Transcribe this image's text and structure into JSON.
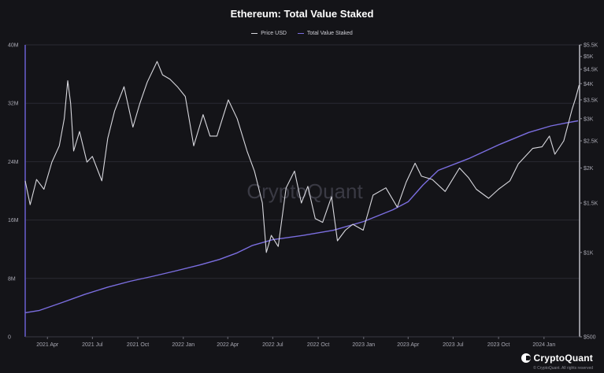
{
  "chart_data": {
    "type": "line",
    "title": "Ethereum: Total Value Staked",
    "legend": [
      "Price USD",
      "Total Value Staked"
    ],
    "legend_placement": "top-center",
    "grid": true,
    "x_ticks": [
      "2021 Apr",
      "2021 Jul",
      "2021 Oct",
      "2022 Jan",
      "2022 Apr",
      "2022 Jul",
      "2022 Oct",
      "2023 Jan",
      "2023 Apr",
      "2023 Jul",
      "2023 Oct",
      "2024 Jan"
    ],
    "x_range": [
      "2021-02-15",
      "2024-03-13"
    ],
    "left_axis": {
      "label": "",
      "ticks": [
        "0",
        "8M",
        "16M",
        "24M",
        "32M",
        "40M"
      ],
      "range": [
        0,
        40000000
      ]
    },
    "right_axis": {
      "label": "",
      "scale": "log",
      "ticks": [
        "$500",
        "$1K",
        "$1.5K",
        "$2K",
        "$2.5K",
        "$3K",
        "$3.5K",
        "$4K",
        "$4.5K",
        "$5K",
        "$5.5K"
      ],
      "range": [
        500,
        5500
      ]
    },
    "series": [
      {
        "name": "Total Value Staked",
        "color": "#7b6ee0",
        "axis": "left",
        "points": [
          [
            "2021-02-15",
            3300000
          ],
          [
            "2021-03-15",
            3600000
          ],
          [
            "2021-05-01",
            4700000
          ],
          [
            "2021-06-15",
            5800000
          ],
          [
            "2021-08-01",
            6800000
          ],
          [
            "2021-09-15",
            7600000
          ],
          [
            "2021-11-01",
            8300000
          ],
          [
            "2021-12-15",
            9000000
          ],
          [
            "2022-02-01",
            9800000
          ],
          [
            "2022-03-15",
            10600000
          ],
          [
            "2022-04-20",
            11500000
          ],
          [
            "2022-05-20",
            12500000
          ],
          [
            "2022-07-01",
            13300000
          ],
          [
            "2022-09-01",
            13900000
          ],
          [
            "2022-11-01",
            14600000
          ],
          [
            "2023-01-01",
            15800000
          ],
          [
            "2023-03-01",
            17400000
          ],
          [
            "2023-04-01",
            18500000
          ],
          [
            "2023-05-01",
            20800000
          ],
          [
            "2023-06-01",
            22800000
          ],
          [
            "2023-08-01",
            24400000
          ],
          [
            "2023-10-01",
            26300000
          ],
          [
            "2023-12-01",
            28000000
          ],
          [
            "2024-01-15",
            28900000
          ],
          [
            "2024-02-15",
            29300000
          ],
          [
            "2024-03-10",
            29600000
          ]
        ]
      },
      {
        "name": "Price USD",
        "color": "#d8d8de",
        "axis": "right",
        "points": [
          [
            "2021-02-15",
            1800
          ],
          [
            "2021-02-25",
            1480
          ],
          [
            "2021-03-10",
            1820
          ],
          [
            "2021-03-25",
            1680
          ],
          [
            "2021-04-10",
            2100
          ],
          [
            "2021-04-25",
            2400
          ],
          [
            "2021-05-05",
            3000
          ],
          [
            "2021-05-12",
            4100
          ],
          [
            "2021-05-18",
            3400
          ],
          [
            "2021-05-24",
            2300
          ],
          [
            "2021-06-05",
            2700
          ],
          [
            "2021-06-20",
            2100
          ],
          [
            "2021-07-01",
            2200
          ],
          [
            "2021-07-20",
            1800
          ],
          [
            "2021-08-01",
            2550
          ],
          [
            "2021-08-15",
            3200
          ],
          [
            "2021-09-03",
            3900
          ],
          [
            "2021-09-21",
            2800
          ],
          [
            "2021-10-05",
            3400
          ],
          [
            "2021-10-20",
            4050
          ],
          [
            "2021-11-09",
            4800
          ],
          [
            "2021-11-20",
            4300
          ],
          [
            "2021-12-05",
            4150
          ],
          [
            "2021-12-20",
            3900
          ],
          [
            "2022-01-05",
            3600
          ],
          [
            "2022-01-22",
            2400
          ],
          [
            "2022-02-10",
            3100
          ],
          [
            "2022-02-24",
            2600
          ],
          [
            "2022-03-10",
            2600
          ],
          [
            "2022-04-02",
            3500
          ],
          [
            "2022-04-20",
            3000
          ],
          [
            "2022-05-10",
            2300
          ],
          [
            "2022-05-25",
            1950
          ],
          [
            "2022-06-10",
            1500
          ],
          [
            "2022-06-18",
            1000
          ],
          [
            "2022-06-28",
            1150
          ],
          [
            "2022-07-12",
            1050
          ],
          [
            "2022-07-28",
            1700
          ],
          [
            "2022-08-14",
            1950
          ],
          [
            "2022-08-28",
            1500
          ],
          [
            "2022-09-10",
            1720
          ],
          [
            "2022-09-25",
            1320
          ],
          [
            "2022-10-10",
            1280
          ],
          [
            "2022-10-28",
            1580
          ],
          [
            "2022-11-09",
            1100
          ],
          [
            "2022-11-25",
            1200
          ],
          [
            "2022-12-10",
            1260
          ],
          [
            "2022-12-31",
            1200
          ],
          [
            "2023-01-20",
            1600
          ],
          [
            "2023-02-15",
            1700
          ],
          [
            "2023-03-10",
            1450
          ],
          [
            "2023-03-28",
            1780
          ],
          [
            "2023-04-15",
            2080
          ],
          [
            "2023-04-28",
            1870
          ],
          [
            "2023-05-20",
            1820
          ],
          [
            "2023-06-15",
            1650
          ],
          [
            "2023-07-14",
            2000
          ],
          [
            "2023-08-01",
            1850
          ],
          [
            "2023-08-17",
            1680
          ],
          [
            "2023-09-11",
            1560
          ],
          [
            "2023-10-01",
            1680
          ],
          [
            "2023-10-24",
            1800
          ],
          [
            "2023-11-10",
            2070
          ],
          [
            "2023-12-09",
            2350
          ],
          [
            "2023-12-28",
            2380
          ],
          [
            "2024-01-12",
            2600
          ],
          [
            "2024-01-23",
            2240
          ],
          [
            "2024-02-10",
            2500
          ],
          [
            "2024-02-27",
            3250
          ],
          [
            "2024-03-05",
            3550
          ],
          [
            "2024-03-12",
            3950
          ]
        ]
      }
    ]
  },
  "watermark": "CryptoQuant",
  "brand": {
    "name": "CryptoQuant",
    "copyright": "© CryptoQuant. All rights reserved"
  }
}
